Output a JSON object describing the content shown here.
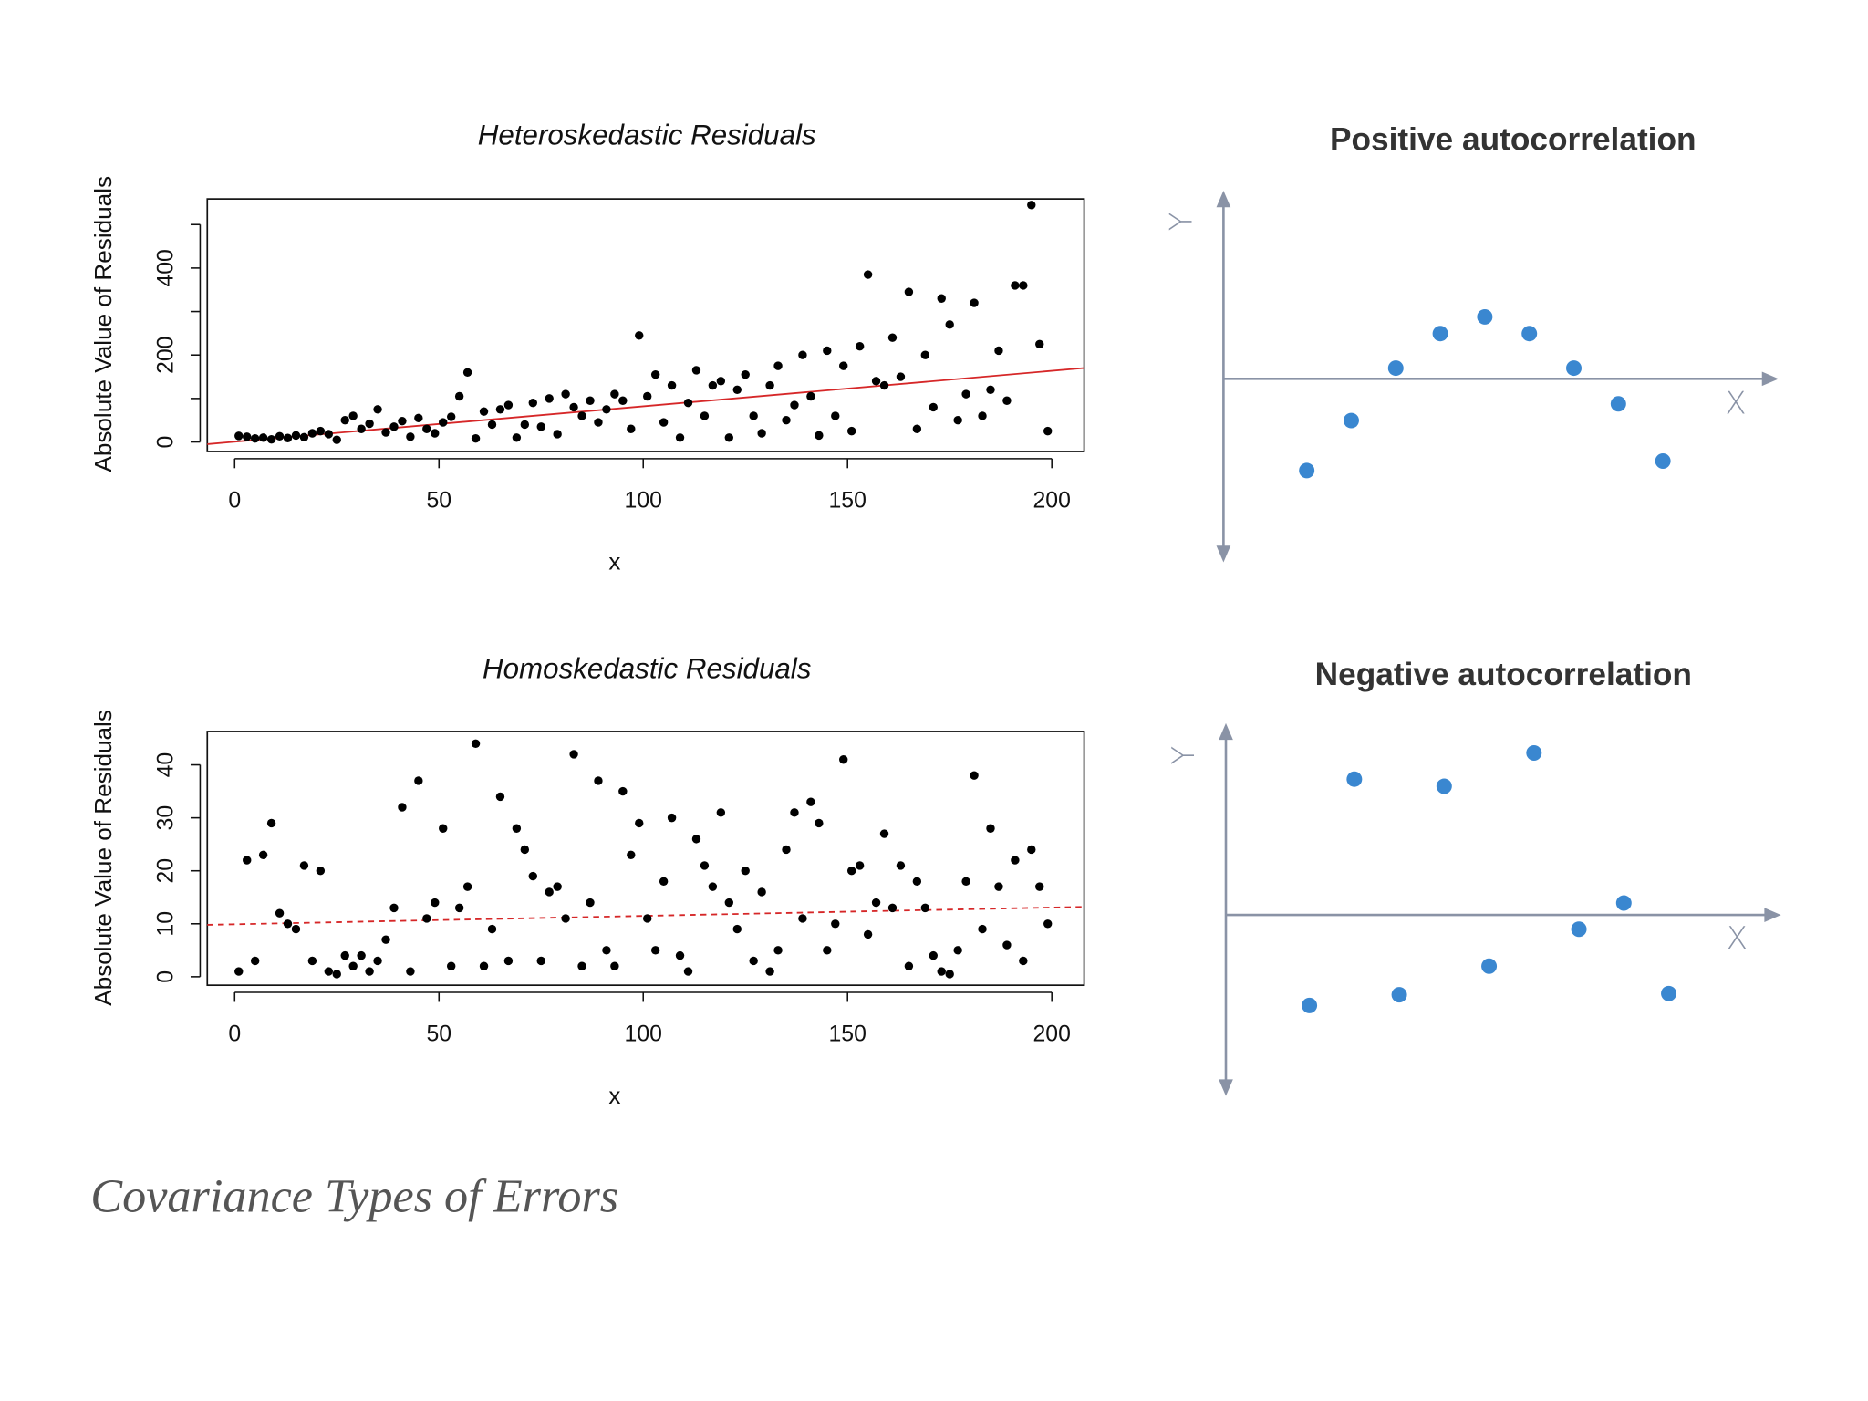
{
  "chart_data": [
    {
      "type": "scatter",
      "frame": "box",
      "title": "Heteroskedastic Residuals",
      "x_label": "x",
      "y_label": "Absolute Value of Residuals",
      "x": [
        1,
        3,
        5,
        7,
        9,
        11,
        13,
        15,
        17,
        19,
        21,
        23,
        25,
        27,
        29,
        31,
        33,
        35,
        37,
        39,
        41,
        43,
        45,
        47,
        49,
        51,
        53,
        55,
        57,
        59,
        61,
        63,
        65,
        67,
        69,
        71,
        73,
        75,
        77,
        79,
        81,
        83,
        85,
        87,
        89,
        91,
        93,
        95,
        97,
        99,
        101,
        103,
        105,
        107,
        109,
        111,
        113,
        115,
        117,
        119,
        121,
        123,
        125,
        127,
        129,
        131,
        133,
        135,
        137,
        139,
        141,
        143,
        145,
        147,
        149,
        151,
        153,
        155,
        157,
        159,
        161,
        163,
        165,
        167,
        169,
        171,
        173,
        175,
        177,
        179,
        181,
        183,
        185,
        187,
        189,
        191,
        193,
        195,
        197,
        199
      ],
      "values": [
        14,
        12,
        8,
        10,
        6,
        13,
        9,
        15,
        11,
        20,
        25,
        18,
        5,
        50,
        60,
        30,
        42,
        75,
        22,
        35,
        48,
        12,
        55,
        30,
        20,
        45,
        58,
        105,
        160,
        8,
        70,
        40,
        75,
        85,
        10,
        40,
        90,
        35,
        100,
        18,
        110,
        80,
        60,
        95,
        45,
        75,
        110,
        95,
        30,
        245,
        105,
        155,
        45,
        130,
        10,
        90,
        165,
        60,
        130,
        140,
        10,
        120,
        155,
        60,
        20,
        130,
        175,
        50,
        85,
        200,
        105,
        15,
        210,
        60,
        175,
        25,
        220,
        385,
        140,
        130,
        240,
        150,
        345,
        30,
        200,
        80,
        330,
        270,
        50,
        110,
        320,
        60,
        120,
        210,
        95,
        360,
        360,
        545,
        225,
        25
      ],
      "color": "#000000",
      "xlim": [
        -6.7,
        207.9
      ],
      "xticks": [
        0,
        50,
        100,
        150,
        200
      ],
      "ylim": [
        -22,
        559
      ],
      "yticks": [
        0,
        200,
        400
      ],
      "yticks_minor": [
        100,
        300,
        500
      ],
      "trend": {
        "x": [
          -6.7,
          207.9
        ],
        "y": [
          -5,
          170
        ],
        "color": "#d62728",
        "dashed": false
      }
    },
    {
      "type": "scatter",
      "frame": "box",
      "title": "Homoskedastic Residuals",
      "x_label": "x",
      "y_label": "Absolute Value of Residuals",
      "x": [
        1,
        3,
        5,
        7,
        9,
        11,
        13,
        15,
        17,
        19,
        21,
        23,
        25,
        27,
        29,
        31,
        33,
        35,
        37,
        39,
        41,
        43,
        45,
        47,
        49,
        51,
        53,
        55,
        57,
        59,
        61,
        63,
        65,
        67,
        69,
        71,
        73,
        75,
        77,
        79,
        81,
        83,
        85,
        87,
        89,
        91,
        93,
        95,
        97,
        99,
        101,
        103,
        105,
        107,
        109,
        111,
        113,
        115,
        117,
        119,
        121,
        123,
        125,
        127,
        129,
        131,
        133,
        135,
        137,
        139,
        141,
        143,
        145,
        147,
        149,
        151,
        153,
        155,
        157,
        159,
        161,
        163,
        165,
        167,
        169,
        171,
        173,
        175,
        177,
        179,
        181,
        183,
        185,
        187,
        189,
        191,
        193,
        195,
        197,
        199
      ],
      "values": [
        1,
        22,
        3,
        23,
        29,
        12,
        10,
        9,
        21,
        3,
        20,
        1,
        0.5,
        4,
        2,
        4,
        1,
        3,
        7,
        13,
        32,
        1,
        37,
        11,
        14,
        28,
        2,
        13,
        17,
        44,
        2,
        9,
        34,
        3,
        28,
        24,
        19,
        3,
        16,
        17,
        11,
        42,
        2,
        14,
        37,
        5,
        2,
        35,
        23,
        29,
        11,
        5,
        18,
        30,
        4,
        1,
        26,
        21,
        17,
        31,
        14,
        9,
        20,
        3,
        16,
        1,
        5,
        24,
        31,
        11,
        33,
        29,
        5,
        10,
        41,
        20,
        21,
        8,
        14,
        27,
        13,
        21,
        2,
        18,
        13,
        4,
        1,
        0.5,
        5,
        18,
        38,
        9,
        28,
        17,
        6,
        22,
        3,
        24,
        17,
        10
      ],
      "color": "#000000",
      "xlim": [
        -6.7,
        207.9
      ],
      "xticks": [
        0,
        50,
        100,
        150,
        200
      ],
      "ylim": [
        -1.6,
        46.3
      ],
      "yticks": [
        0,
        10,
        20,
        30,
        40
      ],
      "trend": {
        "x": [
          -6.7,
          207.9
        ],
        "y": [
          9.8,
          13.2
        ],
        "color": "#d62728",
        "dashed": true
      }
    },
    {
      "type": "scatter",
      "frame": "arrows",
      "title": "Positive autocorrelation",
      "x_label": "X",
      "y_label": "Y",
      "x": [
        1,
        2,
        3,
        4,
        5,
        6,
        7,
        8,
        9
      ],
      "values": [
        -7.7,
        -3.5,
        0.9,
        3.8,
        5.2,
        3.8,
        0.9,
        -2.1,
        -6.9
      ],
      "color": "#3a87d0",
      "xlim": [
        -0.87,
        11.6
      ],
      "ylim": [
        -15.4,
        15.8
      ]
    },
    {
      "type": "scatter",
      "frame": "arrows",
      "title": "Negative autocorrelation",
      "x_label": "X",
      "y_label": "Y",
      "x": [
        1,
        2,
        3,
        4,
        5,
        6,
        7,
        8,
        9
      ],
      "values": [
        -7.6,
        11.4,
        -6.7,
        10.8,
        -4.3,
        13.6,
        -1.2,
        1,
        -6.6
      ],
      "color": "#3a87d0",
      "xlim": [
        -0.86,
        11.5
      ],
      "ylim": [
        -15.2,
        16.1
      ]
    }
  ],
  "caption": "Covariance Types of Errors"
}
